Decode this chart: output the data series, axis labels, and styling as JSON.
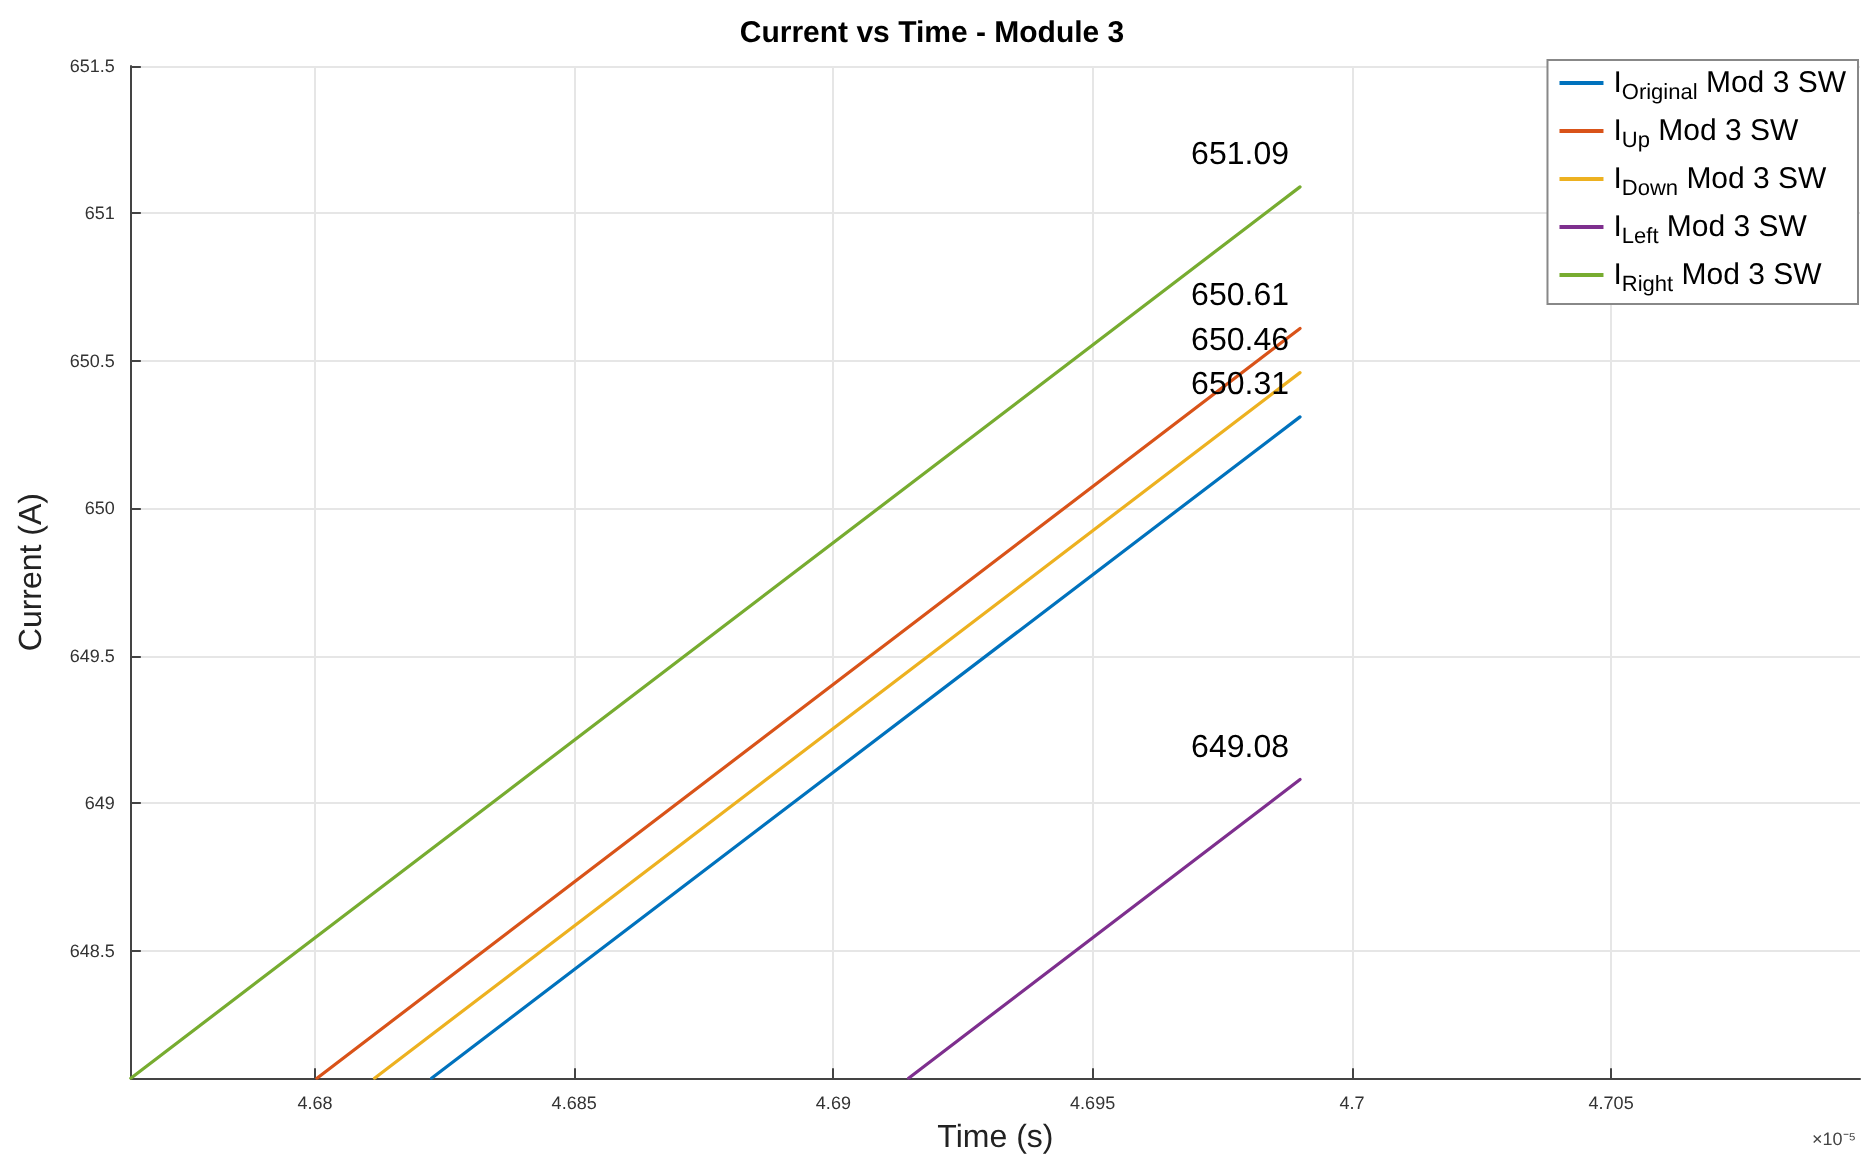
{
  "chart_data": {
    "type": "line",
    "title": "Current vs Time - Module 3",
    "xlabel": "Time (s)",
    "ylabel": "Current (A)",
    "annotations": [
      "×10⁻⁵"
    ],
    "xlim": [
      4.67645,
      4.7098
    ],
    "xticks": [
      4.68,
      4.685,
      4.69,
      4.695,
      4.7,
      4.705
    ],
    "ylim": [
      648.067,
      651.5
    ],
    "yticks": [
      648.5,
      649,
      649.5,
      650,
      650.5,
      651,
      651.5
    ],
    "grid": true,
    "legend": "top right",
    "series": [
      {
        "name": "I$_{Original}$ Mod 3 SW",
        "color": "#0072bd",
        "x": [
          4.68225,
          4.699
        ],
        "values": [
          648.067,
          650.31
        ],
        "value_labels": [
          null,
          "650.31"
        ]
      },
      {
        "name": "I$_{Up}$ Mod 3 SW",
        "color": "#d95319",
        "x": [
          4.68004,
          4.699
        ],
        "values": [
          648.067,
          650.61
        ],
        "value_labels": [
          null,
          "650.61"
        ]
      },
      {
        "name": "I$_{Down}$ Mod 3 SW",
        "color": "#edb120",
        "x": [
          4.68115,
          4.699
        ],
        "values": [
          648.067,
          650.46
        ],
        "value_labels": [
          null,
          "650.46"
        ]
      },
      {
        "name": "I$_{Left}$ Mod 3 SW",
        "color": "#7e2f8e",
        "x": [
          4.69145,
          4.699
        ],
        "values": [
          648.067,
          649.08
        ],
        "value_labels": [
          null,
          "649.08"
        ]
      },
      {
        "name": "I$_{Right}$ Mod 3 SW",
        "color": "#77ac30",
        "x": [
          4.67645,
          4.699
        ],
        "values": [
          648.067,
          651.09
        ],
        "value_labels": [
          null,
          "651.09"
        ]
      }
    ]
  }
}
